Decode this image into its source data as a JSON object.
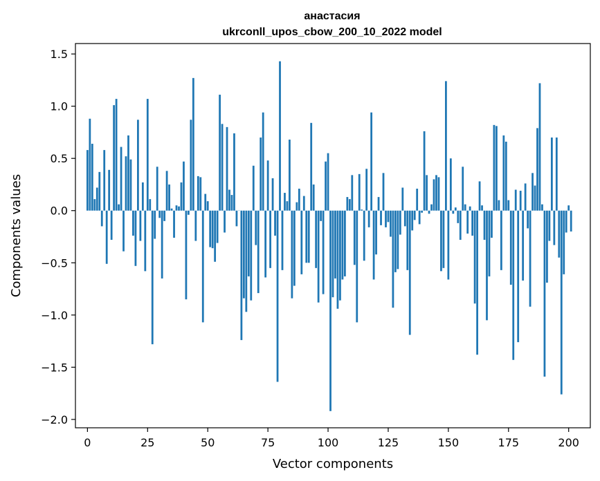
{
  "chart_data": {
    "type": "bar",
    "title_line1": "анастасия",
    "title_line2": "ukrconll_upos_cbow_200_10_2022 model",
    "xlabel": "Vector components",
    "ylabel": "Components values",
    "xlim": [
      -5,
      209
    ],
    "ylim": [
      -2.08,
      1.6
    ],
    "xticks": [
      0,
      25,
      50,
      75,
      100,
      125,
      150,
      175,
      200
    ],
    "yticks": [
      -2.0,
      -1.5,
      -1.0,
      -0.5,
      0.0,
      0.5,
      1.0,
      1.5
    ],
    "ytick_labels": [
      "−2.0",
      "−1.5",
      "−1.0",
      "−0.5",
      "0.0",
      "0.5",
      "1.0",
      "1.5"
    ],
    "bar_color": "#1f77b4",
    "values": [
      0.58,
      0.88,
      0.64,
      0.11,
      0.22,
      0.37,
      -0.15,
      0.58,
      -0.51,
      0.39,
      -0.28,
      1.01,
      1.07,
      0.06,
      0.61,
      -0.39,
      0.52,
      0.72,
      0.49,
      -0.24,
      -0.53,
      0.87,
      -0.29,
      0.27,
      -0.58,
      1.07,
      0.11,
      -1.28,
      -0.27,
      0.42,
      -0.07,
      -0.65,
      -0.1,
      0.38,
      0.25,
      0.02,
      -0.26,
      0.05,
      0.04,
      0.27,
      0.47,
      -0.85,
      -0.04,
      0.87,
      1.27,
      -0.29,
      0.33,
      0.32,
      -1.07,
      0.16,
      0.09,
      -0.35,
      -0.36,
      -0.49,
      -0.31,
      1.11,
      0.83,
      -0.21,
      0.8,
      0.2,
      0.15,
      0.74,
      -0.15,
      0.0,
      -1.24,
      -0.84,
      -0.97,
      -0.63,
      -0.86,
      0.43,
      -0.33,
      -0.79,
      0.7,
      0.94,
      -0.64,
      0.48,
      -0.55,
      0.31,
      -0.24,
      -1.64,
      1.43,
      -0.57,
      0.17,
      0.09,
      0.68,
      -0.84,
      -0.72,
      0.08,
      0.21,
      -0.61,
      0.14,
      -0.5,
      -0.5,
      0.84,
      0.25,
      -0.55,
      -0.88,
      -0.1,
      -0.8,
      0.47,
      0.55,
      -1.92,
      -0.83,
      -0.65,
      -0.94,
      -0.86,
      -0.66,
      -0.63,
      0.13,
      0.11,
      0.34,
      -0.52,
      -1.07,
      0.35,
      0.01,
      -0.48,
      0.4,
      -0.16,
      0.94,
      -0.66,
      -0.42,
      0.13,
      -0.14,
      0.36,
      -0.16,
      -0.11,
      -0.25,
      -0.93,
      -0.59,
      -0.56,
      -0.23,
      0.22,
      -0.15,
      -0.57,
      -1.19,
      -0.19,
      -0.09,
      0.21,
      -0.13,
      -0.02,
      0.76,
      0.34,
      -0.03,
      0.06,
      0.3,
      0.34,
      0.32,
      -0.58,
      -0.55,
      1.24,
      -0.66,
      0.5,
      -0.03,
      0.03,
      -0.12,
      -0.28,
      0.42,
      0.06,
      -0.22,
      0.04,
      -0.24,
      -0.89,
      -1.38,
      0.28,
      0.05,
      -0.28,
      -1.05,
      -0.63,
      -0.26,
      0.82,
      0.81,
      0.1,
      -0.57,
      0.72,
      0.66,
      0.1,
      -0.71,
      -1.43,
      0.2,
      -1.26,
      0.19,
      -0.67,
      0.26,
      -0.17,
      -0.92,
      0.36,
      0.24,
      0.79,
      1.22,
      0.06,
      -1.59,
      -0.69,
      -0.29,
      0.7,
      -0.33,
      0.7,
      -0.45,
      -1.76,
      -0.61,
      -0.21,
      0.05,
      -0.2
    ]
  }
}
